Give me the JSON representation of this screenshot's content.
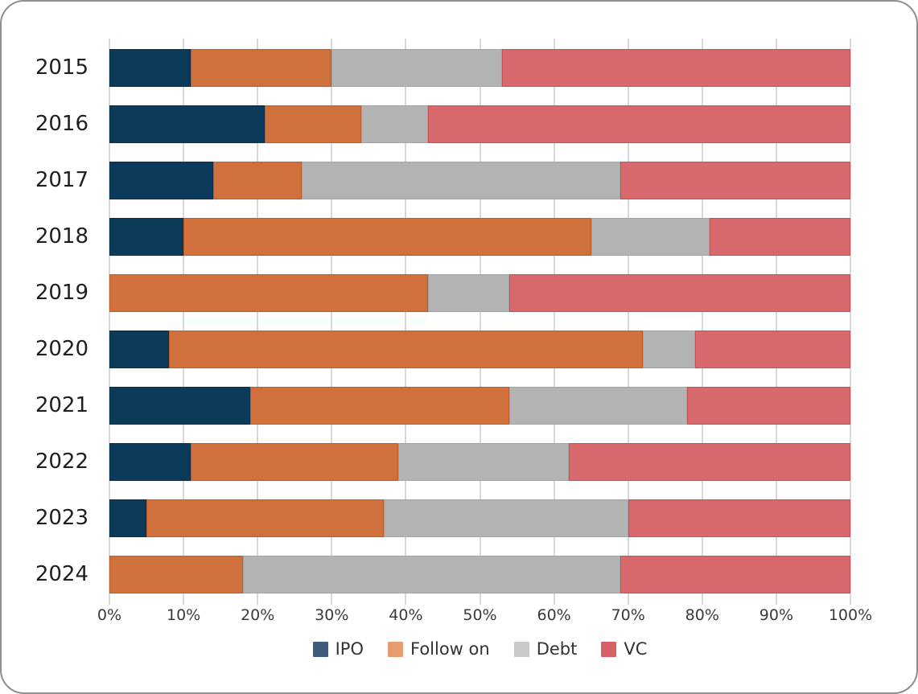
{
  "chart_data": {
    "type": "bar",
    "orientation": "horizontal",
    "stacked": true,
    "stacked_100_percent": true,
    "title": "",
    "xlabel": "",
    "ylabel": "",
    "categories": [
      "2015",
      "2016",
      "2017",
      "2018",
      "2019",
      "2020",
      "2021",
      "2022",
      "2023",
      "2024"
    ],
    "series": [
      {
        "name": "IPO",
        "color": "#0c3a5b",
        "border_color": "#082e49",
        "legend_color": "#3e5d7d",
        "values": [
          11,
          21,
          14,
          10,
          0,
          8,
          19,
          11,
          5,
          0
        ]
      },
      {
        "name": "Follow on",
        "color": "#d0703c",
        "border_color": "#bd5c26",
        "legend_color": "#e69c6e",
        "values": [
          19,
          13,
          12,
          55,
          43,
          64,
          35,
          28,
          32,
          18
        ]
      },
      {
        "name": "Debt",
        "color": "#b3b3b3",
        "border_color": "#a3a3a3",
        "legend_color": "#c9c9c9",
        "values": [
          23,
          9,
          43,
          16,
          11,
          7,
          24,
          23,
          33,
          51
        ]
      },
      {
        "name": "VC",
        "color": "#d7686c",
        "border_color": "#c84f55",
        "legend_color": "#d75f65",
        "values": [
          47,
          57,
          31,
          19,
          46,
          21,
          22,
          38,
          30,
          31
        ]
      }
    ],
    "x_axis": {
      "min": 0,
      "max": 100,
      "tick_step": 10,
      "tick_labels": [
        "0%",
        "10%",
        "20%",
        "30%",
        "40%",
        "50%",
        "60%",
        "70%",
        "80%",
        "90%",
        "100%"
      ]
    },
    "grid": true,
    "legend_position": "bottom"
  },
  "styles": {
    "card_background": "#ffffff",
    "card_border": "#8e8e8e",
    "grid_line": "#d9d9d9",
    "year_label_color": "#1f1f1f",
    "tick_label_color": "#3a3a3a",
    "legend_label_color": "#333333"
  }
}
